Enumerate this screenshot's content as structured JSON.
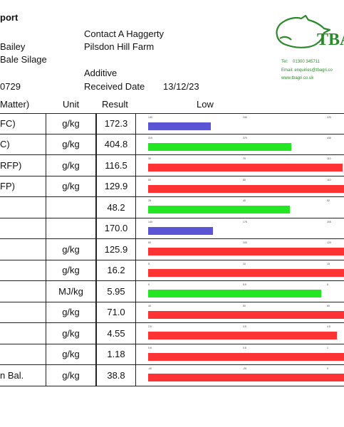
{
  "header": {
    "report_title": "port",
    "contact": "Contact A Haggerty",
    "client_name": "Bailey",
    "farm": "Pilsdon Hill Farm",
    "sample_type": "Bale Silage",
    "additive": "Additive",
    "sample_number": "0729",
    "received_label": "Received Date",
    "received_date": "13/12/23"
  },
  "logo": {
    "text": "TBA",
    "tel_label": "Tel:",
    "tel": "01300 345711",
    "email": "Email: enquiries@tbagri.co",
    "website": "www.tbagri.co.uk",
    "icon": "cow-head-icon"
  },
  "columns": {
    "name": "Matter)",
    "unit": "Unit",
    "result": "Result",
    "chart": "Low"
  },
  "colors": {
    "blue": "#5b55d6",
    "green": "#22e722",
    "red": "#ff3333"
  },
  "rows": [
    {
      "name": "FC)",
      "unit": "g/kg",
      "result": "172.3",
      "ticks": [
        "140",
        "190",
        "220"
      ],
      "fill": 0.32,
      "color": "blue"
    },
    {
      "name": "C)",
      "unit": "g/kg",
      "result": "404.8",
      "ticks": [
        "310",
        "370",
        "430"
      ],
      "fill": 0.73,
      "color": "green"
    },
    {
      "name": "RFP)",
      "unit": "g/kg",
      "result": "116.5",
      "ticks": [
        "30",
        "70",
        "110"
      ],
      "fill": 0.99,
      "color": "red"
    },
    {
      "name": "FP)",
      "unit": "g/kg",
      "result": "129.9",
      "ticks": [
        "50",
        "80",
        "110"
      ],
      "fill": 1.0,
      "color": "red"
    },
    {
      "name": "",
      "unit": "",
      "result": "48.2",
      "ticks": [
        "28",
        "40",
        "52"
      ],
      "fill": 0.72,
      "color": "green"
    },
    {
      "name": "",
      "unit": "",
      "result": "170.0",
      "ticks": [
        "140",
        "175",
        "205"
      ],
      "fill": 0.33,
      "color": "blue"
    },
    {
      "name": "",
      "unit": "g/kg",
      "result": "125.9",
      "ticks": [
        "60",
        "100",
        "120"
      ],
      "fill": 1.0,
      "color": "red"
    },
    {
      "name": "",
      "unit": "g/kg",
      "result": "16.2",
      "ticks": [
        "5",
        "10",
        "15"
      ],
      "fill": 1.0,
      "color": "red"
    },
    {
      "name": "",
      "unit": "MJ/kg",
      "result": "5.95",
      "ticks": [
        "5",
        "5.5",
        "6"
      ],
      "fill": 0.88,
      "color": "green"
    },
    {
      "name": "",
      "unit": "g/kg",
      "result": "71.0",
      "ticks": [
        "40",
        "50",
        "60"
      ],
      "fill": 1.0,
      "color": "red"
    },
    {
      "name": "",
      "unit": "g/kg",
      "result": "4.55",
      "ticks": [
        "2.5",
        "3.5",
        "4.5"
      ],
      "fill": 0.96,
      "color": "red"
    },
    {
      "name": "",
      "unit": "g/kg",
      "result": "1.18",
      "ticks": [
        "0.6",
        "0.8",
        "1"
      ],
      "fill": 1.0,
      "color": "red"
    },
    {
      "name": "n Bal.",
      "unit": "g/kg",
      "result": "38.8",
      "ticks": [
        "-40",
        "-20",
        "0"
      ],
      "fill": 1.0,
      "color": "red"
    }
  ]
}
